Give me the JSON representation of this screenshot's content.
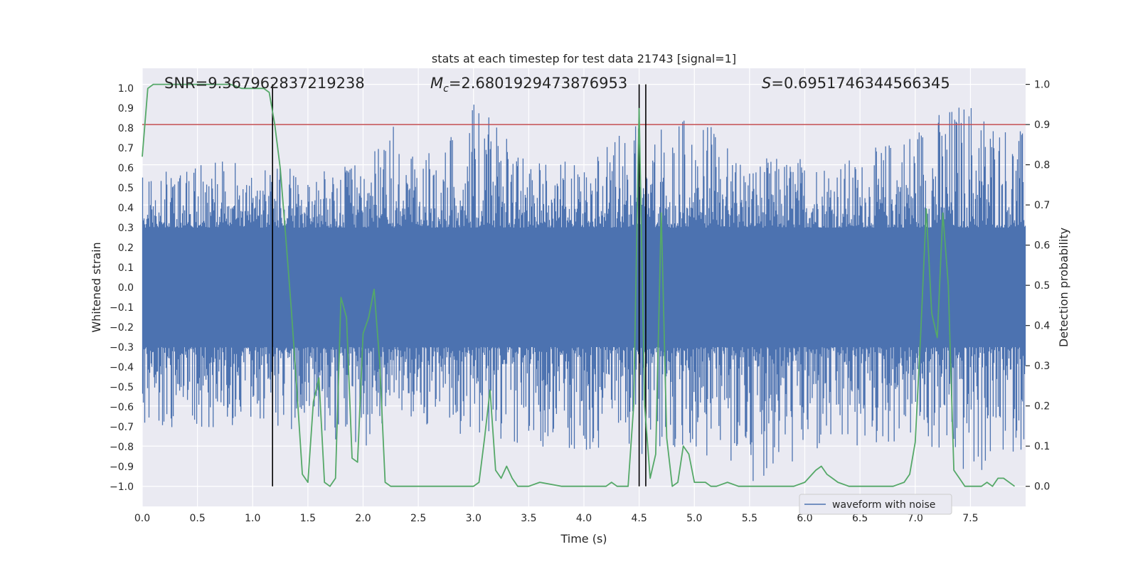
{
  "chart_data": {
    "type": "line",
    "title": "stats at each timestep for test data 21743 [signal=1]",
    "xlabel": "Time (s)",
    "ylabel": "Whitened strain",
    "y2label": "Detection probability",
    "xlim": [
      0,
      8
    ],
    "ylim": [
      -1.1,
      1.1
    ],
    "y2lim": [
      -0.05,
      1.04
    ],
    "xticks": [
      0,
      0.5,
      1.0,
      1.5,
      2.0,
      2.5,
      3.0,
      3.5,
      4.0,
      4.5,
      5.0,
      5.5,
      6.0,
      6.5,
      7.0,
      7.5
    ],
    "xtick_labels": [
      "0.0",
      "0.5",
      "1.0",
      "1.5",
      "2.0",
      "2.5",
      "3.0",
      "3.5",
      "4.0",
      "4.5",
      "5.0",
      "5.5",
      "6.0",
      "6.5",
      "7.0",
      "7.5"
    ],
    "yticks": [
      1.0,
      0.9,
      0.8,
      0.7,
      0.6,
      0.5,
      0.4,
      0.3,
      0.2,
      0.1,
      0.0,
      -0.1,
      -0.2,
      -0.3,
      -0.4,
      -0.5,
      -0.6,
      -0.7,
      -0.8,
      -0.9,
      -1.0
    ],
    "ytick_labels": [
      "1.0",
      "0.9",
      "0.8",
      "0.7",
      "0.6",
      "0.5",
      "0.4",
      "0.3",
      "0.2",
      "0.1",
      "0.0",
      "−0.1",
      "−0.2",
      "−0.3",
      "−0.4",
      "−0.5",
      "−0.6",
      "−0.7",
      "−0.8",
      "−0.9",
      "−1.0"
    ],
    "y2ticks": [
      1.0,
      0.9,
      0.8,
      0.7,
      0.6,
      0.5,
      0.4,
      0.3,
      0.2,
      0.1,
      0.0
    ],
    "y2tick_labels": [
      "1.0",
      "0.9",
      "0.8",
      "0.7",
      "0.6",
      "0.5",
      "0.4",
      "0.3",
      "0.2",
      "0.1",
      "0.0"
    ],
    "annotations": {
      "snr": "SNR=9.367962837219238",
      "mc_symbol": "M",
      "mc_sub": "c",
      "mc_value": "=2.6801929473876953",
      "s_symbol": "S",
      "s_value": "=0.6951746344566345"
    },
    "legend": {
      "label": "waveform with noise",
      "loc": "lower-right"
    },
    "threshold": {
      "value": 0.9,
      "axis": "right",
      "color": "#c44e52"
    },
    "vlines": [
      1.18,
      4.5,
      4.56
    ],
    "vline_range_y2": [
      0.0,
      1.0
    ],
    "noise_envelope": {
      "times": [
        0.0,
        0.5,
        1.0,
        1.5,
        2.0,
        2.3,
        2.5,
        3.0,
        3.5,
        4.0,
        4.5,
        5.0,
        5.5,
        6.0,
        6.5,
        7.0,
        7.5,
        7.95
      ],
      "upper": [
        0.58,
        0.62,
        0.66,
        0.6,
        0.62,
        0.83,
        0.62,
        0.93,
        0.65,
        0.65,
        0.84,
        0.87,
        0.65,
        0.67,
        0.65,
        0.85,
        0.98,
        0.8
      ],
      "lower": [
        -0.7,
        -0.73,
        -0.68,
        -0.75,
        -0.83,
        -0.6,
        -0.7,
        -0.75,
        -0.8,
        -0.82,
        -0.9,
        -0.85,
        -0.98,
        -0.9,
        -0.84,
        -0.78,
        -1.0,
        -0.82
      ]
    },
    "series": [
      {
        "name": "detection probability",
        "axis": "right",
        "color": "#55a868",
        "x": [
          0.0,
          0.05,
          0.1,
          0.2,
          0.4,
          0.6,
          0.8,
          0.9,
          1.0,
          1.1,
          1.15,
          1.2,
          1.25,
          1.3,
          1.35,
          1.4,
          1.45,
          1.5,
          1.55,
          1.6,
          1.65,
          1.7,
          1.75,
          1.8,
          1.85,
          1.9,
          1.95,
          2.0,
          2.05,
          2.1,
          2.15,
          2.2,
          2.25,
          2.3,
          2.35,
          2.4,
          2.45,
          2.5,
          2.6,
          2.8,
          3.0,
          3.05,
          3.1,
          3.15,
          3.2,
          3.25,
          3.3,
          3.35,
          3.4,
          3.5,
          3.6,
          3.8,
          4.0,
          4.2,
          4.25,
          4.3,
          4.4,
          4.45,
          4.5,
          4.55,
          4.6,
          4.65,
          4.7,
          4.75,
          4.8,
          4.85,
          4.9,
          4.95,
          5.0,
          5.05,
          5.1,
          5.15,
          5.2,
          5.3,
          5.4,
          5.5,
          5.7,
          5.9,
          6.0,
          6.1,
          6.15,
          6.2,
          6.25,
          6.3,
          6.4,
          6.6,
          6.7,
          6.8,
          6.9,
          6.95,
          7.0,
          7.05,
          7.1,
          7.15,
          7.2,
          7.25,
          7.3,
          7.35,
          7.4,
          7.45,
          7.5,
          7.6,
          7.65,
          7.7,
          7.75,
          7.8,
          7.9
        ],
        "values": [
          0.82,
          0.99,
          1.0,
          1.0,
          1.0,
          1.0,
          1.0,
          0.99,
          0.99,
          0.99,
          0.98,
          0.9,
          0.79,
          0.62,
          0.44,
          0.24,
          0.03,
          0.01,
          0.21,
          0.27,
          0.01,
          0.0,
          0.02,
          0.47,
          0.42,
          0.07,
          0.06,
          0.38,
          0.42,
          0.49,
          0.31,
          0.01,
          0.0,
          0.0,
          0.0,
          0.0,
          0.0,
          0.0,
          0.0,
          0.0,
          0.0,
          0.01,
          0.12,
          0.24,
          0.04,
          0.02,
          0.05,
          0.02,
          0.0,
          0.0,
          0.01,
          0.0,
          0.0,
          0.0,
          0.01,
          0.0,
          0.0,
          0.2,
          0.94,
          0.2,
          0.02,
          0.08,
          0.68,
          0.12,
          0.0,
          0.01,
          0.1,
          0.08,
          0.01,
          0.01,
          0.01,
          0.0,
          0.0,
          0.01,
          0.0,
          0.0,
          0.0,
          0.0,
          0.01,
          0.04,
          0.05,
          0.03,
          0.02,
          0.01,
          0.0,
          0.0,
          0.0,
          0.0,
          0.01,
          0.03,
          0.11,
          0.38,
          0.69,
          0.43,
          0.37,
          0.68,
          0.5,
          0.04,
          0.02,
          0.0,
          0.0,
          0.0,
          0.01,
          0.0,
          0.02,
          0.02,
          0.0
        ]
      }
    ]
  }
}
